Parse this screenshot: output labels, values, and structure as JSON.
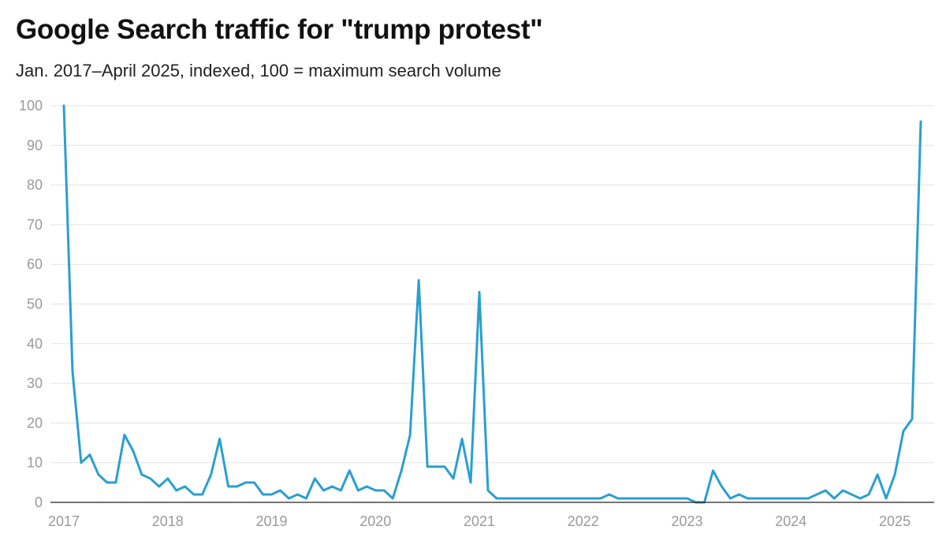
{
  "chart_data": {
    "type": "line",
    "title": "Google Search traffic for \"trump protest\"",
    "subtitle": "Jan. 2017–April 2025, indexed, 100 = maximum search volume",
    "xlabel": "",
    "ylabel": "",
    "ylim": [
      0,
      100
    ],
    "yticks": [
      0,
      10,
      20,
      30,
      40,
      50,
      60,
      70,
      80,
      90,
      100
    ],
    "ytick_labels": [
      "0",
      "10",
      "20",
      "30",
      "40",
      "50",
      "60",
      "70",
      "80",
      "90",
      "100"
    ],
    "xticks": [
      {
        "value": 0,
        "label": "2017"
      },
      {
        "value": 12,
        "label": "2018"
      },
      {
        "value": 24,
        "label": "2019"
      },
      {
        "value": 36,
        "label": "2020"
      },
      {
        "value": 48,
        "label": "2021"
      },
      {
        "value": 60,
        "label": "2022"
      },
      {
        "value": 72,
        "label": "2023"
      },
      {
        "value": 84,
        "label": "2024"
      },
      {
        "value": 96,
        "label": "2025"
      }
    ],
    "xlim": [
      0,
      99
    ],
    "grid": true,
    "series": [
      {
        "name": "trump protest",
        "color": "#2a9fd0",
        "start": "2017-01",
        "values": [
          100,
          33,
          10,
          12,
          7,
          5,
          5,
          17,
          13,
          7,
          6,
          4,
          6,
          3,
          4,
          2,
          2,
          7,
          16,
          4,
          4,
          5,
          5,
          2,
          2,
          3,
          1,
          2,
          1,
          6,
          3,
          4,
          3,
          8,
          3,
          4,
          3,
          3,
          1,
          8,
          17,
          56,
          9,
          9,
          9,
          6,
          16,
          5,
          53,
          3,
          1,
          1,
          1,
          1,
          1,
          1,
          1,
          1,
          1,
          1,
          1,
          1,
          1,
          2,
          1,
          1,
          1,
          1,
          1,
          1,
          1,
          1,
          1,
          0,
          0,
          8,
          4,
          1,
          2,
          1,
          1,
          1,
          1,
          1,
          1,
          1,
          1,
          2,
          3,
          1,
          3,
          2,
          1,
          2,
          7,
          1,
          7,
          18,
          21,
          96
        ]
      }
    ]
  }
}
